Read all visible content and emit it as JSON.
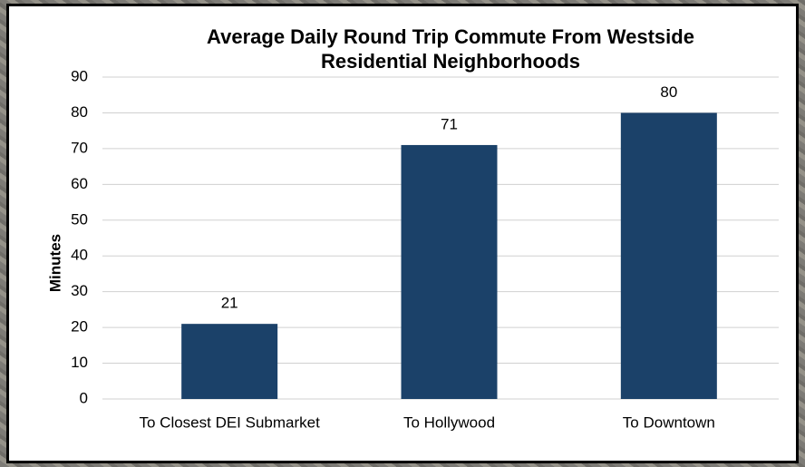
{
  "chart_data": {
    "type": "bar",
    "title": "Average Daily Round Trip Commute From Westside Residential Neighborhoods",
    "y_label": "Minutes",
    "categories": [
      "To Closest DEI Submarket",
      "To Hollywood",
      "To Downtown"
    ],
    "values": [
      21,
      71,
      80
    ],
    "color": "#1b4169",
    "ylim": [
      0,
      90
    ],
    "yticks": [
      0,
      10,
      20,
      30,
      40,
      50,
      60,
      70,
      80,
      90
    ],
    "grid": true
  }
}
